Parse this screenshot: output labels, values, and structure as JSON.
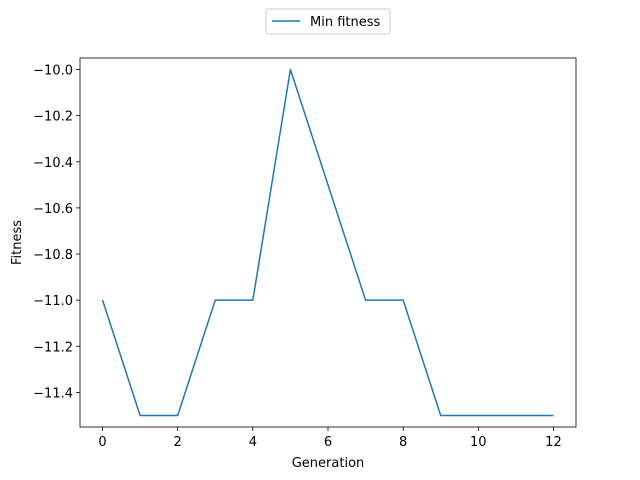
{
  "chart_data": {
    "type": "line",
    "title": "",
    "xlabel": "Generation",
    "ylabel": "Fitness",
    "xlim": [
      -0.6,
      12.6
    ],
    "ylim": [
      -11.55,
      -9.95
    ],
    "xticks": [
      0,
      2,
      4,
      6,
      8,
      10,
      12
    ],
    "xtick_labels": [
      "0",
      "2",
      "4",
      "6",
      "8",
      "10",
      "12"
    ],
    "yticks": [
      -10.0,
      -10.2,
      -10.4,
      -10.6,
      -10.8,
      -11.0,
      -11.2,
      -11.4
    ],
    "ytick_labels": [
      "−10.0",
      "−10.2",
      "−10.4",
      "−10.6",
      "−10.8",
      "−11.0",
      "−11.2",
      "−11.4"
    ],
    "grid": false,
    "legend_position": "top-center, outside plot",
    "series": [
      {
        "name": "Min fitness",
        "color": "#1f77b4",
        "x": [
          0,
          1,
          2,
          3,
          4,
          5,
          6,
          7,
          8,
          9,
          10,
          11,
          12
        ],
        "values": [
          -11.0,
          -11.5,
          -11.5,
          -11.0,
          -11.0,
          -10.0,
          -10.5,
          -11.0,
          -11.0,
          -11.5,
          -11.5,
          -11.5,
          -11.5
        ]
      }
    ]
  }
}
